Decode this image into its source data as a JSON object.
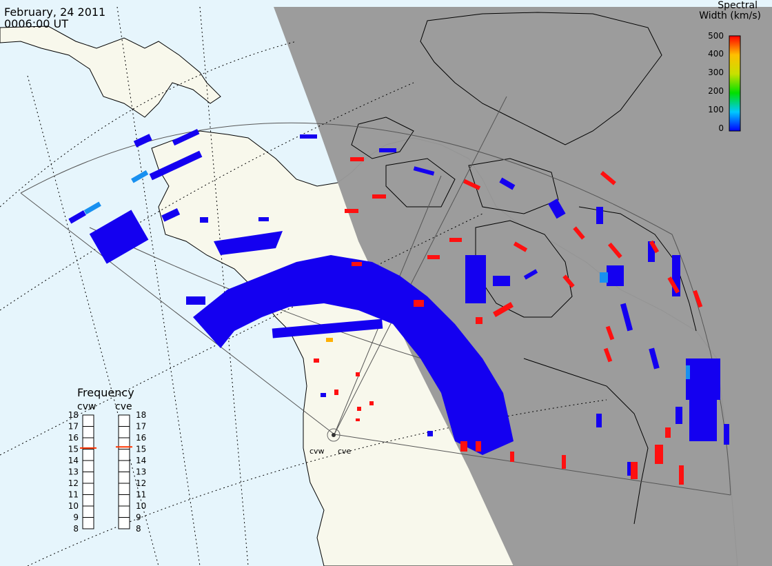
{
  "header": {
    "date": "February, 24 2011",
    "time": "0006:00 UT"
  },
  "colorbar": {
    "title_line1": "Spectral",
    "title_line2": "Width (km/s)",
    "ticks": [
      "500",
      "400",
      "300",
      "200",
      "100",
      "0"
    ],
    "colors": [
      "#0000ff",
      "#00c8ff",
      "#00e000",
      "#c8e000",
      "#ffc000",
      "#ff0000"
    ]
  },
  "frequency": {
    "title": "Frequency",
    "radars": [
      {
        "name": "cvw",
        "value_mhz": 15.1
      },
      {
        "name": "cve",
        "value_mhz": 15.2
      }
    ],
    "ticks": [
      "18",
      "17",
      "16",
      "15",
      "14",
      "13",
      "12",
      "11",
      "10",
      "9",
      "8"
    ]
  },
  "radar_sites": {
    "cvw_label": "cvw",
    "cve_label": "cve"
  },
  "colors": {
    "ocean": "#e6f5fc",
    "land": "#f8f8ec",
    "night": "#999999",
    "scatter_low": "#1400f0",
    "scatter_high": "#ff1010"
  }
}
